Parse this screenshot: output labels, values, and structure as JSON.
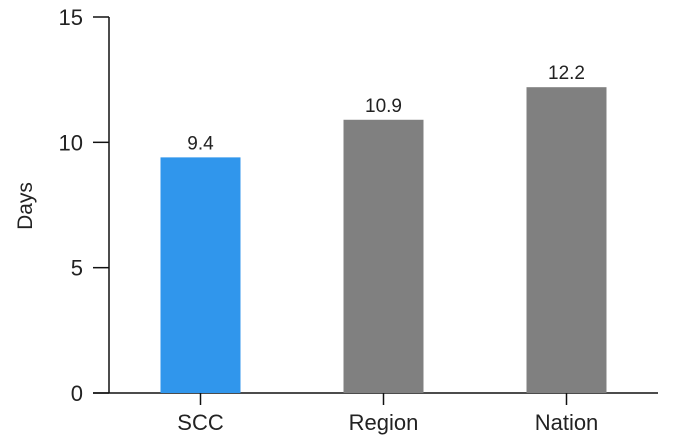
{
  "chart_data": {
    "type": "bar",
    "categories": [
      "SCC",
      "Region",
      "Nation"
    ],
    "values": [
      9.4,
      10.9,
      12.2
    ],
    "value_labels": [
      "9.4",
      "10.9",
      "12.2"
    ],
    "bar_colors": [
      "#3096ec",
      "#808080",
      "#808080"
    ],
    "title": "",
    "xlabel": "",
    "ylabel": "Days",
    "ylim": [
      0,
      15
    ],
    "yticks": [
      0,
      5,
      10,
      15
    ],
    "ytick_labels": [
      "0",
      "5",
      "10",
      "15"
    ],
    "grid": false,
    "legend": "none"
  }
}
